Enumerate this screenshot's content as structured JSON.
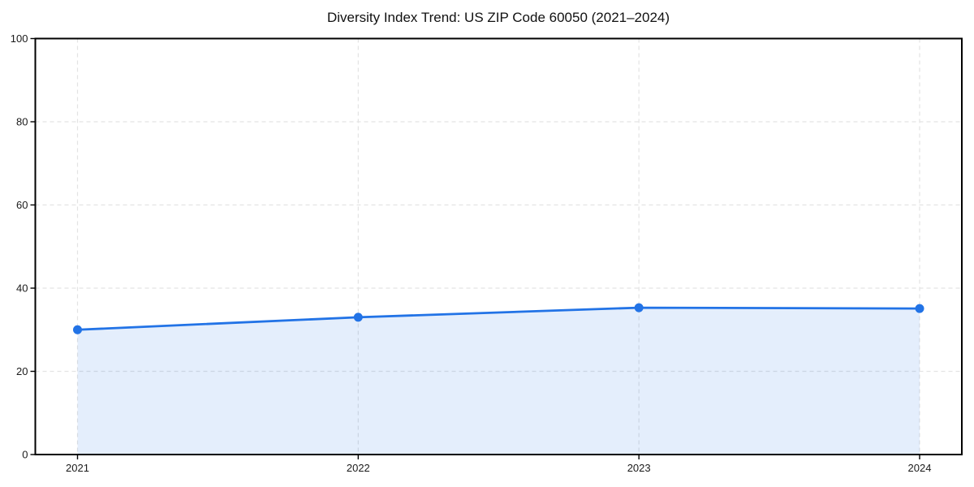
{
  "chart_data": {
    "type": "line",
    "title": "Diversity Index Trend: US ZIP Code 60050 (2021–2024)",
    "x": [
      "2021",
      "2022",
      "2023",
      "2024"
    ],
    "values": [
      30,
      33,
      35.3,
      35.1
    ],
    "xlabel": "",
    "ylabel": "",
    "ylim": [
      0,
      100
    ],
    "yticks": [
      0,
      20,
      40,
      60,
      80,
      100
    ],
    "grid": true,
    "grid_style": "dashed",
    "legend_position": "none",
    "marker": "circle",
    "line_color": "#2273e6",
    "fill_color": "rgba(34,115,230,0.12)",
    "axis_color": "#000000",
    "grid_color": "#e3e3e3",
    "tick_label_color": "#1a1a1a"
  }
}
